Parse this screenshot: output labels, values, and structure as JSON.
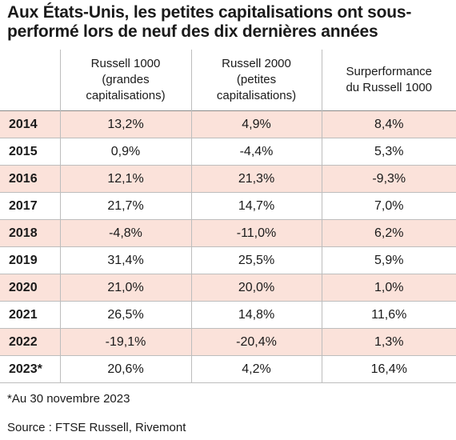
{
  "title": "Aux États-Unis, les petites capitalisations ont sous-performé lors de neuf des dix dernières années",
  "footnote": "*Au 30 novembre 2023",
  "source": "Source : FTSE Russell, Rivemont",
  "colors": {
    "shaded_row": "#fbe2da",
    "border": "#bdbdbd"
  },
  "chart_data": {
    "type": "table",
    "title": "Aux États-Unis, les petites capitalisations ont sous-performé lors de neuf des dix dernières années",
    "columns": [
      "",
      "Russell 1000 (grandes capitalisations)",
      "Russell 2000 (petites capitalisations)",
      "Surperformance du Russell 1000"
    ],
    "header_lines": [
      [],
      [
        "Russell 1000",
        "(grandes",
        "capitalisations)"
      ],
      [
        "Russell 2000",
        "(petites",
        "capitalisations)"
      ],
      [
        "Surperformance",
        "du Russell 1000"
      ]
    ],
    "rows": [
      {
        "year": "2014",
        "r1000": "13,2%",
        "r2000": "4,9%",
        "outperf": "8,4%"
      },
      {
        "year": "2015",
        "r1000": "0,9%",
        "r2000": "-4,4%",
        "outperf": "5,3%"
      },
      {
        "year": "2016",
        "r1000": "12,1%",
        "r2000": "21,3%",
        "outperf": "-9,3%"
      },
      {
        "year": "2017",
        "r1000": "21,7%",
        "r2000": "14,7%",
        "outperf": "7,0%"
      },
      {
        "year": "2018",
        "r1000": "-4,8%",
        "r2000": "-11,0%",
        "outperf": "6,2%"
      },
      {
        "year": "2019",
        "r1000": "31,4%",
        "r2000": "25,5%",
        "outperf": "5,9%"
      },
      {
        "year": "2020",
        "r1000": "21,0%",
        "r2000": "20,0%",
        "outperf": "1,0%"
      },
      {
        "year": "2021",
        "r1000": "26,5%",
        "r2000": "14,8%",
        "outperf": "11,6%"
      },
      {
        "year": "2022",
        "r1000": "-19,1%",
        "r2000": "-20,4%",
        "outperf": "1,3%"
      },
      {
        "year": "2023*",
        "r1000": "20,6%",
        "r2000": "4,2%",
        "outperf": "16,4%"
      }
    ]
  }
}
